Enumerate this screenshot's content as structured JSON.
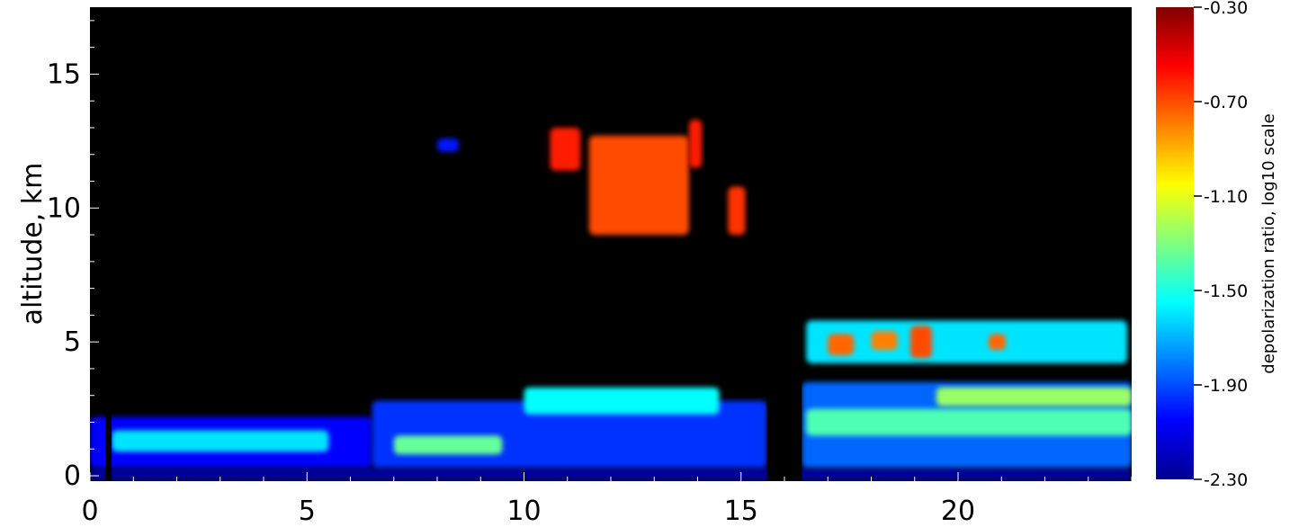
{
  "chart_data": [
    {
      "type": "heatmap",
      "title": "",
      "xlabel": "",
      "ylabel": "altitude, km",
      "xlim": [
        0,
        24
      ],
      "ylim": [
        -0.2,
        17.5
      ],
      "x_ticks": [
        0,
        5,
        10,
        15,
        20
      ],
      "x_tick_labels": [
        "0",
        "5",
        "10",
        "15",
        "20"
      ],
      "y_ticks": [
        0,
        5,
        10,
        15
      ],
      "y_tick_labels": [
        "0",
        "5",
        "10",
        "15"
      ],
      "background_color": "#000000",
      "colormap": "jet",
      "colorbar": {
        "label": "depolarization ratio, log10 scale",
        "range": [
          -2.3,
          -0.3
        ],
        "ticks": [
          -2.3,
          -1.9,
          -1.5,
          -1.1,
          -0.7,
          -0.3
        ],
        "tick_labels": [
          "-2.30",
          "-1.90",
          "-1.50",
          "-1.10",
          "-0.70",
          "-0.30"
        ]
      },
      "features": [
        {
          "t0": 0,
          "t1": 24,
          "z0": -0.2,
          "z1": 0.3,
          "value": -2.25
        },
        {
          "t0": 0,
          "t1": 6.5,
          "z0": 0.3,
          "z1": 2.2,
          "value": -2.05
        },
        {
          "t0": 6.5,
          "t1": 15.6,
          "z0": 0.3,
          "z1": 2.8,
          "value": -1.95
        },
        {
          "t0": 16.4,
          "t1": 24,
          "z0": 0.3,
          "z1": 3.5,
          "value": -1.85
        },
        {
          "t0": 0.5,
          "t1": 5.5,
          "z0": 0.9,
          "z1": 1.7,
          "value": -1.6
        },
        {
          "t0": 7.0,
          "t1": 9.5,
          "z0": 0.8,
          "z1": 1.5,
          "value": -1.35
        },
        {
          "t0": 10.0,
          "t1": 14.5,
          "z0": 2.3,
          "z1": 3.3,
          "value": -1.55
        },
        {
          "t0": 16.5,
          "t1": 24,
          "z0": 1.5,
          "z1": 2.5,
          "value": -1.4
        },
        {
          "t0": 19.5,
          "t1": 24,
          "z0": 2.6,
          "z1": 3.3,
          "value": -1.25
        },
        {
          "t0": 16.5,
          "t1": 23.9,
          "z0": 4.2,
          "z1": 5.8,
          "value": -1.6
        },
        {
          "t0": 17.0,
          "t1": 17.6,
          "z0": 4.5,
          "z1": 5.3,
          "value": -0.75
        },
        {
          "t0": 18.0,
          "t1": 18.6,
          "z0": 4.7,
          "z1": 5.4,
          "value": -0.8
        },
        {
          "t0": 18.9,
          "t1": 19.4,
          "z0": 4.4,
          "z1": 5.6,
          "value": -0.7
        },
        {
          "t0": 20.7,
          "t1": 21.1,
          "z0": 4.7,
          "z1": 5.3,
          "value": -0.75
        },
        {
          "t0": 10.6,
          "t1": 11.3,
          "z0": 11.4,
          "z1": 13.0,
          "value": -0.6
        },
        {
          "t0": 11.5,
          "t1": 13.8,
          "z0": 9.0,
          "z1": 12.7,
          "value": -0.7
        },
        {
          "t0": 13.8,
          "t1": 14.1,
          "z0": 11.5,
          "z1": 13.3,
          "value": -0.6
        },
        {
          "t0": 14.7,
          "t1": 15.1,
          "z0": 9.0,
          "z1": 10.8,
          "value": -0.65
        },
        {
          "t0": 8.0,
          "t1": 8.5,
          "z0": 12.1,
          "z1": 12.6,
          "value": -2.0
        }
      ],
      "gaps": [
        {
          "t0": 0.35,
          "t1": 0.5
        },
        {
          "t0": 15.6,
          "t1": 16.4
        }
      ]
    }
  ]
}
